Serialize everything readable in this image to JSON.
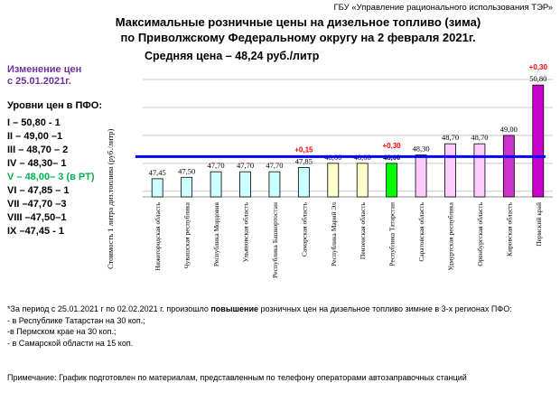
{
  "header": {
    "org": "ГБУ «Управление рационального использования ТЭР»",
    "title_line1": "Максимальные розничные цены на дизельное топливо (зима)",
    "title_line2": "по Приволжскому Федеральному округу на 2 февраля 2021г.",
    "average": "Средняя цена – 48,24 руб./литр"
  },
  "sidebar": {
    "change_line1": "Изменение цен",
    "change_line2": "с 25.01.2021г.",
    "levels_title": "Уровни цен в ПФО:",
    "levels": [
      {
        "text": "I – 50,80 - 1",
        "color": "#000000"
      },
      {
        "text": "II – 49,00 –1",
        "color": "#000000"
      },
      {
        "text": "III – 48,70 – 2",
        "color": "#000000"
      },
      {
        "text": "IV – 48,30– 1",
        "color": "#000000"
      },
      {
        "text": "V – 48,00– 3 (в РТ)",
        "color": "#00b050"
      },
      {
        "text": "VI – 47,85 – 1",
        "color": "#000000"
      },
      {
        "text": "VII –47,70 –3",
        "color": "#000000"
      },
      {
        "text": "VIII –47,50–1",
        "color": "#000000"
      },
      {
        "text": "IX –47,45 - 1",
        "color": "#000000"
      }
    ]
  },
  "chart_data": {
    "type": "bar",
    "ylabel": "Стоимость 1 литра диз.топлива (руб./литр)",
    "ylim": [
      46.8,
      51.0
    ],
    "average_line": 48.24,
    "grid": true,
    "categories": [
      "Нижегородская область",
      "Чувашская республика",
      "Республика Мордовия",
      "Ульяновская область",
      "Республика Башкортостан",
      "Самарская область",
      "Республика Марий Эл",
      "Пензенская область",
      "Республика Татарстан",
      "Саратовская область",
      "Удмуртская республика",
      "Оренбургская область",
      "Кировская область",
      "Пермский край"
    ],
    "values": [
      47.45,
      47.5,
      47.7,
      47.7,
      47.7,
      47.85,
      48.0,
      48.0,
      48.0,
      48.3,
      48.7,
      48.7,
      49.0,
      50.8
    ],
    "value_labels": [
      "47,45",
      "47,50",
      "47,70",
      "47,70",
      "47,70",
      "47,85",
      "48,00",
      "48,00",
      "48,00",
      "48,30",
      "48,70",
      "48,70",
      "49,00",
      "50,80"
    ],
    "changes": [
      "",
      "",
      "",
      "",
      "",
      "+0,15",
      "",
      "",
      "+0,30",
      "",
      "",
      "",
      "",
      "+0,30"
    ],
    "colors": {
      "fill": [
        "#ccffff",
        "#ccffff",
        "#ccffff",
        "#ccffff",
        "#ccffff",
        "#ccffff",
        "#ffffcc",
        "#ffffcc",
        "#00ff00",
        "#ffccff",
        "#ffccff",
        "#ffccff",
        "#cc33cc",
        "#cc00cc"
      ],
      "border": "#000000",
      "average_line": "#0000ff",
      "change": "#ff0000",
      "grid": "#c8c8c8"
    }
  },
  "notes": {
    "line1_prefix": "*За период с 25.01.2021 г по 02.02.2021 г. произошло ",
    "line1_bold": "повышение",
    "line1_suffix": " розничных  цен на дизельное топливо зимние в 3-х регионах ПФО:",
    "line2": "- в Республике Татарстан на 30 коп.;",
    "line3": "-в Пермском крае на 30 коп.;",
    "line4": "- в Самарской области на 15 коп.",
    "footnote": "Примечание: График подготовлен по материалам, представленным по телефону операторами автозаправочных станций"
  }
}
